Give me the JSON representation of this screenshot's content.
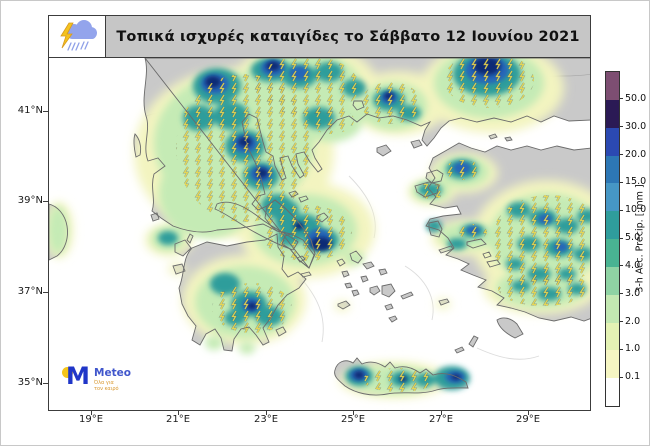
{
  "title": {
    "text": "Τοπικά ισχυρές καταιγίδες το Σάββατο 12 Ιουνίου 2021"
  },
  "axes": {
    "lon_ticks": [
      "19°E",
      "21°E",
      "23°E",
      "25°E",
      "27°E",
      "29°E"
    ],
    "lat_ticks": [
      "41°N",
      "39°N",
      "37°N",
      "35°N"
    ]
  },
  "colorbar": {
    "label": "3-h Acc. Precip. [ mm ]",
    "tick_labels": [
      "50.0",
      "30.0",
      "20.0",
      "15.0",
      "10.0",
      "5.0",
      "4.0",
      "3.0",
      "2.0",
      "1.0",
      "0.1"
    ],
    "levels_mm": [
      0.1,
      1,
      2,
      3,
      4,
      5,
      10,
      15,
      20,
      30,
      50
    ],
    "segment_colors_bottom_to_top": [
      "#ffffff",
      "#f6f6c3",
      "#e4f2b4",
      "#c3e8b2",
      "#8fd3a4",
      "#49b392",
      "#2f9d9c",
      "#4697c5",
      "#2d77b5",
      "#2b49b2",
      "#2b1a55",
      "#7d4e72"
    ]
  },
  "logo": {
    "m_letter": "M",
    "name": "Meteo",
    "tagline_line1": "Όλα για",
    "tagline_line2": "τον καιρό"
  },
  "palette": {
    "land": "#c9c9c9",
    "coastline": "#6b6b6b",
    "sea": "#ffffff",
    "hatch_yellow": "#e8d44c"
  }
}
